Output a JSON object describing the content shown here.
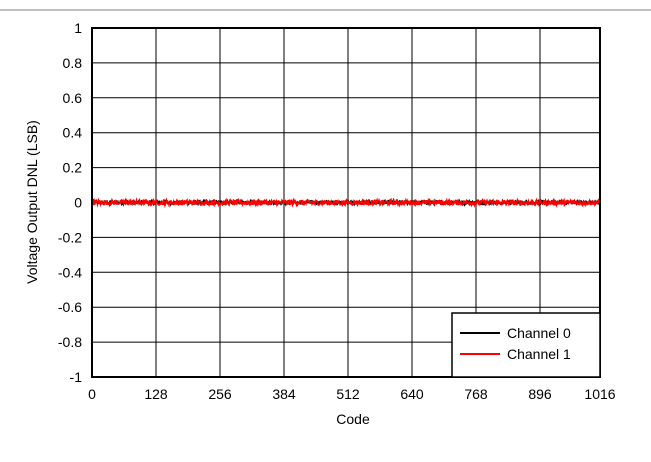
{
  "chart_data": {
    "type": "line",
    "xlabel": "Code",
    "ylabel": "Voltage Output DNL (LSB)",
    "xlim": [
      0,
      1016
    ],
    "ylim": [
      -1,
      1
    ],
    "x_ticks": [
      0,
      128,
      256,
      384,
      512,
      640,
      768,
      896,
      1016
    ],
    "x_tick_labels": [
      "0",
      "128",
      "256",
      "384",
      "512",
      "640",
      "768",
      "896",
      "1016"
    ],
    "y_ticks": [
      1,
      0.8,
      0.6,
      0.4,
      0.2,
      0,
      -0.2,
      -0.4,
      -0.6,
      -0.8,
      -1
    ],
    "y_tick_labels": [
      "1",
      "0.8",
      "0.6",
      "0.4",
      "0.2",
      "0",
      "-0.2",
      "-0.4",
      "-0.6",
      "-0.8",
      "-1"
    ],
    "grid": true,
    "legend": "bottom-right",
    "series": [
      {
        "name": "Channel 0",
        "color": "#000000",
        "x_range": [
          0,
          1016
        ],
        "noise_amplitude": 0.012,
        "values_approx": "≈0 across all codes (within ±0.02 LSB)"
      },
      {
        "name": "Channel 1",
        "color": "#ff0000",
        "x_range": [
          0,
          1016
        ],
        "noise_amplitude": 0.015,
        "values_approx": "≈0 across all codes (within ±0.03 LSB)"
      }
    ]
  }
}
